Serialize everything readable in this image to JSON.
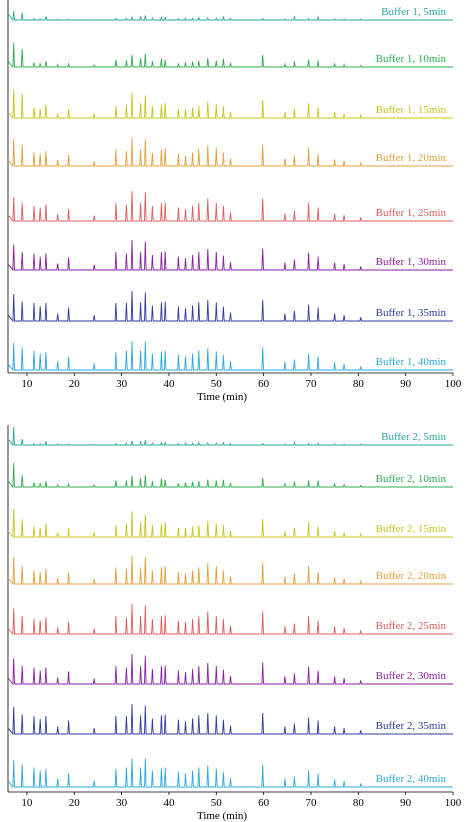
{
  "figure": {
    "panels": [
      {
        "xlabel": "Time (min)",
        "xticks": [
          10,
          20,
          30,
          40,
          50,
          60,
          70,
          80,
          90,
          100
        ],
        "series": [
          {
            "name": "Buffer 1, 5min",
            "color": "#2aa79b"
          },
          {
            "name": "Buffer 1, 10min",
            "color": "#2fae4f"
          },
          {
            "name": "Buffer 1, 15min",
            "color": "#c7c51b"
          },
          {
            "name": "Buffer 1, 20min",
            "color": "#e0a03c"
          },
          {
            "name": "Buffer 1, 25min",
            "color": "#df5b5b"
          },
          {
            "name": "Buffer 1, 30min",
            "color": "#8a1fa0"
          },
          {
            "name": "Buffer 1, 35min",
            "color": "#2f3a9e"
          },
          {
            "name": "Buffer 1, 40min",
            "color": "#2aa9df"
          }
        ]
      },
      {
        "xlabel": "Time (min)",
        "xticks": [
          10,
          20,
          30,
          40,
          50,
          60,
          70,
          80,
          90,
          100
        ],
        "series": [
          {
            "name": "Buffer 2, 5min",
            "color": "#2aa79b"
          },
          {
            "name": "Buffer 2, 10min",
            "color": "#2fae4f"
          },
          {
            "name": "Buffer 2, 15min",
            "color": "#c7c51b"
          },
          {
            "name": "Buffer 2, 20min",
            "color": "#e0a03c"
          },
          {
            "name": "Buffer 2, 25min",
            "color": "#df5b5b"
          },
          {
            "name": "Buffer 2, 30min",
            "color": "#8a1fa0"
          },
          {
            "name": "Buffer 2, 35min",
            "color": "#2f3a9e"
          },
          {
            "name": "Buffer 2, 40min",
            "color": "#2aa9df"
          }
        ]
      }
    ]
  },
  "chart_data": [
    {
      "type": "line",
      "xlabel": "Time (min)",
      "xlim": [
        6,
        100
      ],
      "peak_times": [
        7.2,
        9.0,
        11.5,
        12.8,
        14.0,
        16.5,
        18.8,
        24.2,
        28.8,
        31.0,
        32.2,
        34.0,
        35.0,
        36.5,
        38.4,
        39.2,
        42.0,
        43.5,
        45.0,
        46.3,
        48.2,
        50.0,
        51.5,
        53.0,
        59.8,
        64.5,
        66.5,
        69.5,
        71.5,
        75.0,
        77.0,
        80.5
      ],
      "peak_heights": [
        [
          0.3,
          0.25,
          0.05,
          0.04,
          0.12,
          0.03,
          0.03,
          0.02,
          0.05,
          0.06,
          0.1,
          0.12,
          0.15,
          0.06,
          0.1,
          0.08,
          0.05,
          0.06,
          0.06,
          0.08,
          0.07,
          0.06,
          0.12,
          0.06,
          0.05,
          0.04,
          0.1,
          0.05,
          0.1,
          0.04,
          0.03,
          0.03
        ],
        [
          0.8,
          0.6,
          0.15,
          0.12,
          0.2,
          0.08,
          0.1,
          0.06,
          0.25,
          0.22,
          0.4,
          0.3,
          0.45,
          0.2,
          0.28,
          0.24,
          0.12,
          0.15,
          0.18,
          0.2,
          0.3,
          0.22,
          0.28,
          0.14,
          0.4,
          0.1,
          0.18,
          0.25,
          0.22,
          0.1,
          0.08,
          0.05
        ],
        [
          0.95,
          0.8,
          0.35,
          0.3,
          0.45,
          0.15,
          0.3,
          0.15,
          0.4,
          0.45,
          0.85,
          0.5,
          0.75,
          0.4,
          0.45,
          0.5,
          0.3,
          0.3,
          0.35,
          0.4,
          0.55,
          0.45,
          0.4,
          0.2,
          0.6,
          0.2,
          0.3,
          0.5,
          0.35,
          0.2,
          0.15,
          0.1
        ],
        [
          0.9,
          0.7,
          0.45,
          0.4,
          0.5,
          0.2,
          0.38,
          0.15,
          0.55,
          0.5,
          0.95,
          0.55,
          0.9,
          0.45,
          0.55,
          0.6,
          0.4,
          0.35,
          0.45,
          0.55,
          0.7,
          0.6,
          0.45,
          0.25,
          0.7,
          0.25,
          0.35,
          0.6,
          0.4,
          0.22,
          0.18,
          0.1
        ],
        [
          0.8,
          0.6,
          0.5,
          0.45,
          0.55,
          0.22,
          0.4,
          0.18,
          0.6,
          0.55,
          1.0,
          0.6,
          0.95,
          0.5,
          0.6,
          0.62,
          0.45,
          0.4,
          0.5,
          0.6,
          0.75,
          0.6,
          0.5,
          0.28,
          0.75,
          0.25,
          0.35,
          0.6,
          0.45,
          0.25,
          0.2,
          0.12
        ],
        [
          0.85,
          0.6,
          0.55,
          0.45,
          0.55,
          0.22,
          0.42,
          0.18,
          0.6,
          0.55,
          1.0,
          0.6,
          0.95,
          0.5,
          0.6,
          0.62,
          0.45,
          0.4,
          0.5,
          0.6,
          0.7,
          0.6,
          0.48,
          0.26,
          0.72,
          0.25,
          0.35,
          0.58,
          0.45,
          0.25,
          0.2,
          0.12
        ],
        [
          0.9,
          0.65,
          0.6,
          0.5,
          0.6,
          0.25,
          0.45,
          0.2,
          0.6,
          0.6,
          1.0,
          0.62,
          0.95,
          0.52,
          0.62,
          0.65,
          0.48,
          0.42,
          0.52,
          0.62,
          0.7,
          0.62,
          0.48,
          0.28,
          0.7,
          0.25,
          0.35,
          0.55,
          0.45,
          0.25,
          0.2,
          0.12
        ],
        [
          0.9,
          0.75,
          0.65,
          0.55,
          0.6,
          0.28,
          0.45,
          0.22,
          0.6,
          0.65,
          0.95,
          0.65,
          0.95,
          0.55,
          0.62,
          0.65,
          0.5,
          0.45,
          0.55,
          0.65,
          0.72,
          0.62,
          0.5,
          0.3,
          0.75,
          0.28,
          0.35,
          0.55,
          0.45,
          0.25,
          0.2,
          0.12
        ]
      ]
    },
    {
      "type": "line",
      "xlabel": "Time (min)",
      "xlim": [
        6,
        100
      ],
      "peak_times": [
        7.2,
        9.0,
        11.5,
        12.8,
        14.0,
        16.5,
        18.8,
        24.2,
        28.8,
        31.0,
        32.2,
        34.0,
        35.0,
        36.5,
        38.4,
        39.2,
        42.0,
        43.5,
        45.0,
        46.3,
        48.2,
        50.0,
        51.5,
        53.0,
        59.8,
        64.5,
        66.5,
        69.5,
        71.5,
        75.0,
        77.0,
        80.5
      ],
      "peak_heights": [
        [
          0.6,
          0.2,
          0.05,
          0.04,
          0.12,
          0.03,
          0.03,
          0.02,
          0.05,
          0.06,
          0.14,
          0.1,
          0.16,
          0.06,
          0.08,
          0.08,
          0.05,
          0.06,
          0.06,
          0.08,
          0.07,
          0.06,
          0.08,
          0.05,
          0.05,
          0.04,
          0.08,
          0.05,
          0.06,
          0.04,
          0.03,
          0.03
        ],
        [
          0.8,
          0.4,
          0.15,
          0.12,
          0.2,
          0.08,
          0.1,
          0.06,
          0.22,
          0.22,
          0.38,
          0.3,
          0.4,
          0.2,
          0.28,
          0.24,
          0.12,
          0.15,
          0.18,
          0.2,
          0.25,
          0.22,
          0.24,
          0.14,
          0.3,
          0.1,
          0.18,
          0.22,
          0.22,
          0.1,
          0.08,
          0.05
        ],
        [
          0.95,
          0.6,
          0.35,
          0.3,
          0.45,
          0.15,
          0.3,
          0.15,
          0.4,
          0.45,
          0.85,
          0.5,
          0.75,
          0.4,
          0.45,
          0.5,
          0.3,
          0.3,
          0.35,
          0.4,
          0.55,
          0.45,
          0.4,
          0.2,
          0.6,
          0.2,
          0.3,
          0.5,
          0.35,
          0.2,
          0.15,
          0.1
        ],
        [
          0.9,
          0.6,
          0.45,
          0.4,
          0.5,
          0.2,
          0.38,
          0.15,
          0.55,
          0.5,
          0.95,
          0.55,
          0.9,
          0.45,
          0.55,
          0.6,
          0.4,
          0.35,
          0.45,
          0.55,
          0.7,
          0.6,
          0.45,
          0.25,
          0.7,
          0.25,
          0.35,
          0.6,
          0.4,
          0.22,
          0.18,
          0.1
        ],
        [
          0.85,
          0.6,
          0.5,
          0.45,
          0.55,
          0.22,
          0.4,
          0.18,
          0.6,
          0.55,
          1.0,
          0.6,
          0.95,
          0.5,
          0.6,
          0.62,
          0.45,
          0.4,
          0.5,
          0.6,
          0.75,
          0.6,
          0.5,
          0.28,
          0.75,
          0.25,
          0.35,
          0.6,
          0.45,
          0.25,
          0.2,
          0.12
        ],
        [
          0.85,
          0.6,
          0.55,
          0.45,
          0.55,
          0.22,
          0.42,
          0.18,
          0.6,
          0.55,
          1.0,
          0.6,
          0.95,
          0.5,
          0.6,
          0.62,
          0.45,
          0.4,
          0.5,
          0.6,
          0.7,
          0.6,
          0.48,
          0.26,
          0.72,
          0.25,
          0.35,
          0.58,
          0.45,
          0.25,
          0.2,
          0.12
        ],
        [
          0.9,
          0.65,
          0.6,
          0.5,
          0.6,
          0.25,
          0.45,
          0.2,
          0.6,
          0.6,
          1.0,
          0.62,
          0.95,
          0.52,
          0.62,
          0.65,
          0.48,
          0.42,
          0.52,
          0.62,
          0.7,
          0.62,
          0.48,
          0.28,
          0.7,
          0.25,
          0.35,
          0.55,
          0.45,
          0.25,
          0.2,
          0.12
        ],
        [
          0.9,
          0.75,
          0.65,
          0.55,
          0.6,
          0.28,
          0.45,
          0.22,
          0.6,
          0.65,
          0.95,
          0.65,
          0.95,
          0.55,
          0.62,
          0.65,
          0.5,
          0.45,
          0.55,
          0.65,
          0.72,
          0.62,
          0.5,
          0.3,
          0.75,
          0.28,
          0.35,
          0.55,
          0.45,
          0.25,
          0.2,
          0.12
        ]
      ]
    }
  ]
}
